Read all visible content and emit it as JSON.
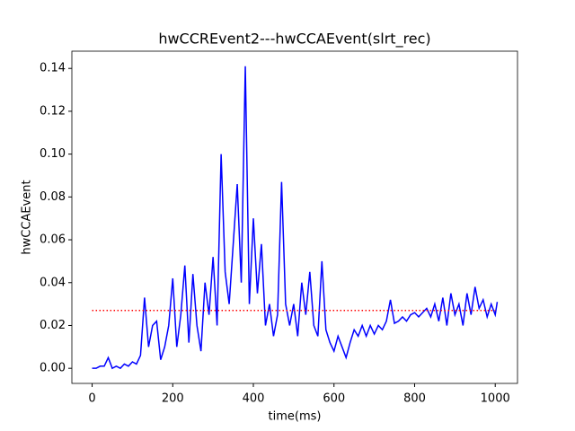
{
  "chart_data": {
    "type": "line",
    "title": "hwCCREvent2---hwCCAEvent(slrt_rec)",
    "x_label": "time(ms)",
    "y_label": "hwCCAEvent",
    "xlim": [
      -50.25,
      1055.25
    ],
    "ylim": [
      -0.00705,
      0.14805
    ],
    "xticks": [
      0,
      200,
      400,
      600,
      800,
      1000
    ],
    "yticks": [
      {
        "value": 0,
        "label": "0.00"
      },
      {
        "value": 0.02,
        "label": "0.02"
      },
      {
        "value": 0.04,
        "label": "0.04"
      },
      {
        "value": 0.06,
        "label": "0.06"
      },
      {
        "value": 0.08,
        "label": "0.08"
      },
      {
        "value": 0.1,
        "label": "0.10"
      },
      {
        "value": 0.12,
        "label": "0.12"
      },
      {
        "value": 0.14,
        "label": "0.14"
      }
    ],
    "x": [
      0,
      10,
      20,
      30,
      40,
      50,
      60,
      70,
      80,
      90,
      100,
      110,
      120,
      130,
      140,
      150,
      160,
      170,
      180,
      190,
      200,
      210,
      220,
      230,
      240,
      250,
      260,
      270,
      280,
      290,
      300,
      310,
      320,
      330,
      340,
      350,
      360,
      370,
      380,
      390,
      400,
      410,
      420,
      430,
      440,
      450,
      460,
      470,
      480,
      490,
      500,
      510,
      520,
      530,
      540,
      550,
      560,
      570,
      580,
      590,
      600,
      610,
      620,
      630,
      640,
      650,
      660,
      670,
      680,
      690,
      700,
      710,
      720,
      730,
      740,
      750,
      760,
      770,
      780,
      790,
      800,
      810,
      820,
      830,
      840,
      850,
      860,
      870,
      880,
      890,
      900,
      910,
      920,
      930,
      940,
      950,
      960,
      970,
      980,
      990,
      1000,
      1005
    ],
    "series": [
      {
        "color": "#0000ff",
        "values": [
          0,
          0,
          0.001,
          0.001,
          0.005,
          0,
          0.001,
          0,
          0.002,
          0.001,
          0.003,
          0.002,
          0.006,
          0.033,
          0.01,
          0.02,
          0.022,
          0.004,
          0.01,
          0.02,
          0.042,
          0.01,
          0.025,
          0.048,
          0.012,
          0.044,
          0.02,
          0.008,
          0.04,
          0.025,
          0.052,
          0.02,
          0.1,
          0.045,
          0.03,
          0.058,
          0.086,
          0.04,
          0.141,
          0.03,
          0.07,
          0.035,
          0.058,
          0.02,
          0.03,
          0.015,
          0.025,
          0.087,
          0.03,
          0.02,
          0.03,
          0.015,
          0.04,
          0.025,
          0.045,
          0.02,
          0.015,
          0.05,
          0.018,
          0.012,
          0.008,
          0.015,
          0.01,
          0.005,
          0.012,
          0.018,
          0.015,
          0.02,
          0.015,
          0.02,
          0.016,
          0.02,
          0.018,
          0.022,
          0.032,
          0.021,
          0.022,
          0.024,
          0.022,
          0.025,
          0.026,
          0.024,
          0.026,
          0.028,
          0.024,
          0.03,
          0.022,
          0.033,
          0.02,
          0.035,
          0.025,
          0.03,
          0.02,
          0.035,
          0.025,
          0.038,
          0.028,
          0.032,
          0.024,
          0.03,
          0.025,
          0.031
        ]
      }
    ],
    "reference_line": {
      "y": 0.027,
      "x": [
        0,
        1000
      ],
      "color": "#ff0000"
    }
  }
}
